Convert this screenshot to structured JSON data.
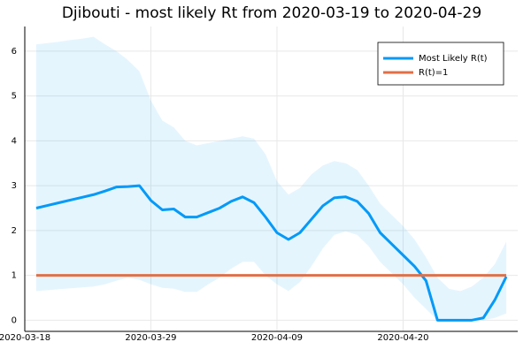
{
  "chart_data": {
    "type": "line",
    "title": "Djibouti - most likely Rt from 2020-03-19 to 2020-04-29",
    "x": [
      "2020-03-19",
      "2020-03-20",
      "2020-03-21",
      "2020-03-22",
      "2020-03-23",
      "2020-03-24",
      "2020-03-25",
      "2020-03-26",
      "2020-03-27",
      "2020-03-28",
      "2020-03-29",
      "2020-03-30",
      "2020-03-31",
      "2020-04-01",
      "2020-04-02",
      "2020-04-03",
      "2020-04-04",
      "2020-04-05",
      "2020-04-06",
      "2020-04-07",
      "2020-04-08",
      "2020-04-09",
      "2020-04-10",
      "2020-04-11",
      "2020-04-12",
      "2020-04-13",
      "2020-04-14",
      "2020-04-15",
      "2020-04-16",
      "2020-04-17",
      "2020-04-18",
      "2020-04-19",
      "2020-04-20",
      "2020-04-21",
      "2020-04-22",
      "2020-04-23",
      "2020-04-24",
      "2020-04-25",
      "2020-04-26",
      "2020-04-27",
      "2020-04-28",
      "2020-04-29"
    ],
    "series": [
      {
        "name": "Most Likely R(t)",
        "color": "#009af9",
        "values": [
          2.5,
          2.56,
          2.62,
          2.68,
          2.74,
          2.8,
          2.88,
          2.97,
          2.98,
          3.0,
          2.67,
          2.46,
          2.48,
          2.3,
          2.3,
          2.4,
          2.5,
          2.65,
          2.75,
          2.62,
          2.3,
          1.95,
          1.8,
          1.95,
          2.25,
          2.55,
          2.73,
          2.75,
          2.65,
          2.38,
          1.95,
          1.7,
          1.45,
          1.2,
          0.88,
          0,
          0,
          0,
          0,
          0.05,
          0.45,
          0.97
        ],
        "upper": [
          6.15,
          6.18,
          6.21,
          6.25,
          6.28,
          6.32,
          6.15,
          6.0,
          5.8,
          5.55,
          4.9,
          4.45,
          4.3,
          4.0,
          3.9,
          3.95,
          4.0,
          4.05,
          4.1,
          4.05,
          3.7,
          3.1,
          2.8,
          2.95,
          3.25,
          3.45,
          3.55,
          3.5,
          3.35,
          3.0,
          2.6,
          2.35,
          2.1,
          1.8,
          1.4,
          0.95,
          0.7,
          0.65,
          0.75,
          0.95,
          1.25,
          1.75
        ],
        "lower": [
          0.65,
          0.67,
          0.69,
          0.71,
          0.73,
          0.75,
          0.8,
          0.88,
          0.95,
          0.9,
          0.8,
          0.72,
          0.7,
          0.63,
          0.63,
          0.8,
          0.95,
          1.15,
          1.3,
          1.3,
          1.0,
          0.8,
          0.65,
          0.85,
          1.2,
          1.6,
          1.9,
          1.98,
          1.9,
          1.65,
          1.3,
          1.05,
          0.8,
          0.5,
          0.25,
          0,
          0,
          0,
          0,
          0,
          0.05,
          0.15
        ]
      },
      {
        "name": "R(t)=1",
        "color": "#e26f46",
        "values": [
          1,
          1,
          1,
          1,
          1,
          1,
          1,
          1,
          1,
          1,
          1,
          1,
          1,
          1,
          1,
          1,
          1,
          1,
          1,
          1,
          1,
          1,
          1,
          1,
          1,
          1,
          1,
          1,
          1,
          1,
          1,
          1,
          1,
          1,
          1,
          1,
          1,
          1,
          1,
          1,
          1,
          1
        ]
      }
    ],
    "xlim": [
      "2020-03-18",
      "2020-04-30"
    ],
    "xticks": [
      "2020-03-18",
      "2020-03-29",
      "2020-04-09",
      "2020-04-20"
    ],
    "ylim": [
      -0.25,
      6.55
    ],
    "yticks": [
      0,
      1,
      2,
      3,
      4,
      5,
      6
    ],
    "grid": true,
    "legend": "top-right"
  }
}
